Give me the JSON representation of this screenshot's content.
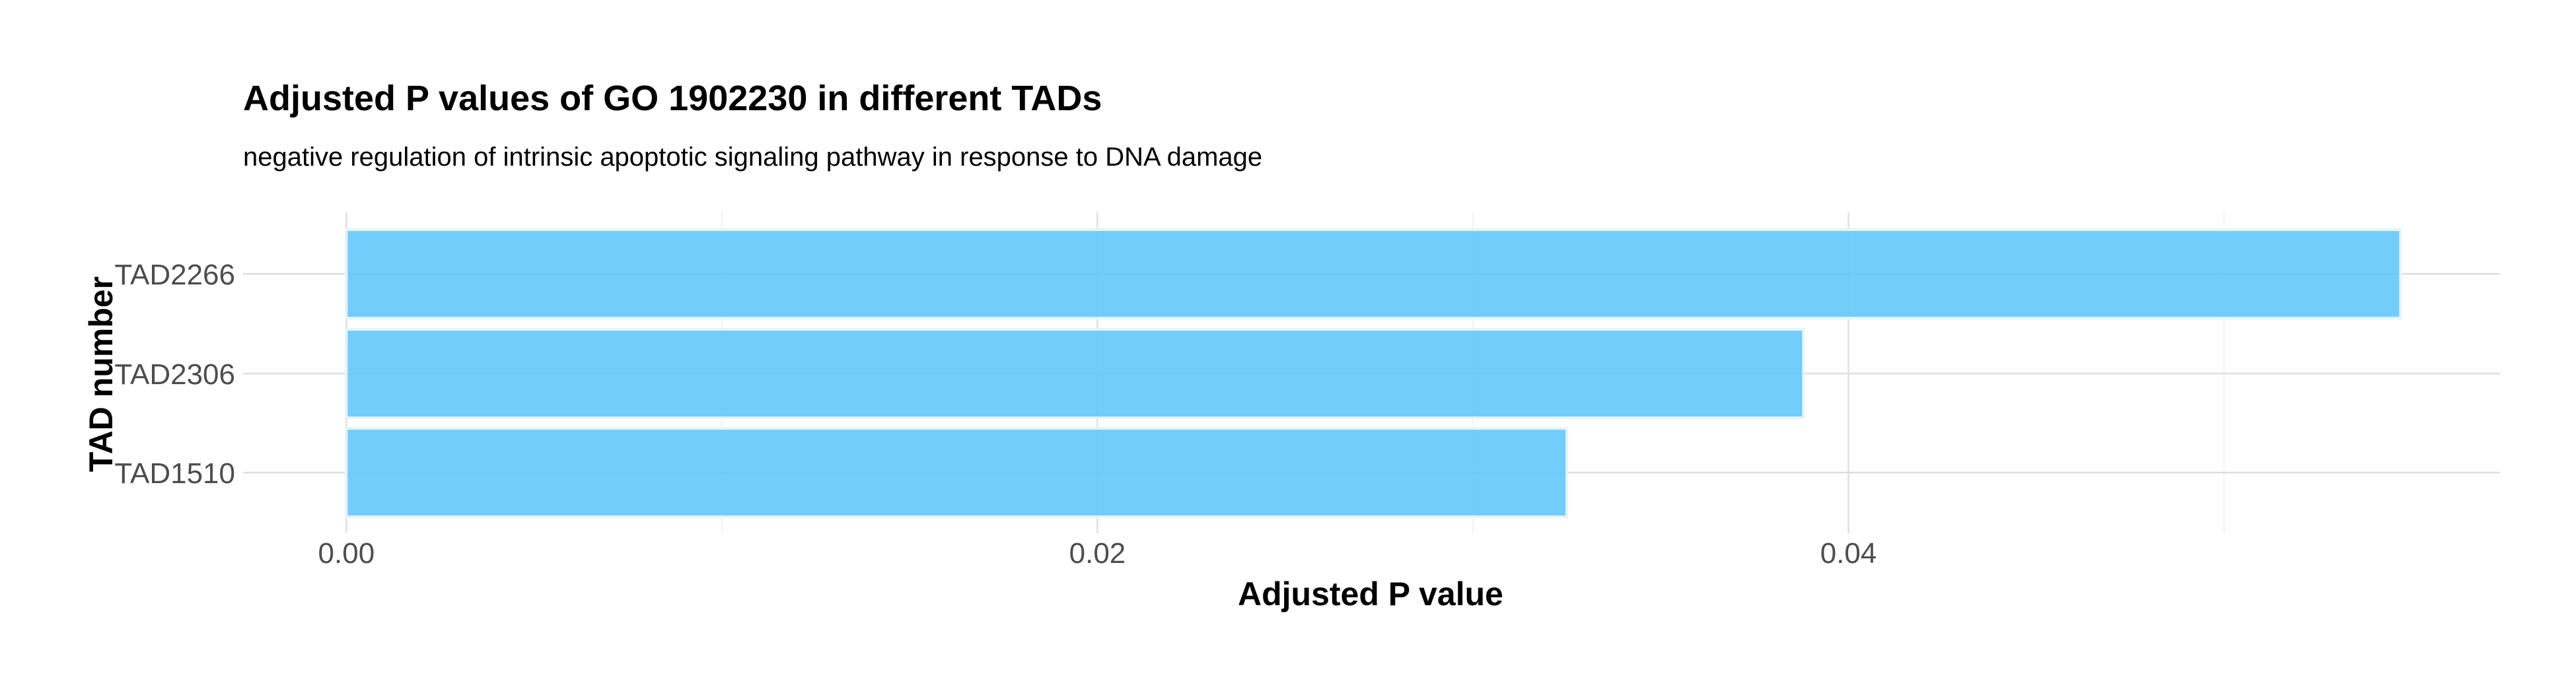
{
  "chart_data": {
    "type": "bar",
    "orientation": "horizontal",
    "title": "Adjusted P values of GO 1902230 in different TADs",
    "subtitle": "negative regulation of intrinsic apoptotic signaling pathway in response to DNA damage",
    "xlabel": "Adjusted P value",
    "ylabel": "TAD number",
    "categories": [
      "TAD2266",
      "TAD2306",
      "TAD1510"
    ],
    "values": [
      0.0547,
      0.0388,
      0.0325
    ],
    "xlim": [
      -0.00275,
      0.05735
    ],
    "x_ticks": [
      0.0,
      0.02,
      0.04
    ],
    "x_tick_labels": [
      "0.00",
      "0.02",
      "0.04"
    ],
    "x_minor_ticks": [
      0.01,
      0.03,
      0.05
    ],
    "grid": true,
    "bar_color": "#64c8fa",
    "bar_outline_color": "#e6f4fd"
  }
}
